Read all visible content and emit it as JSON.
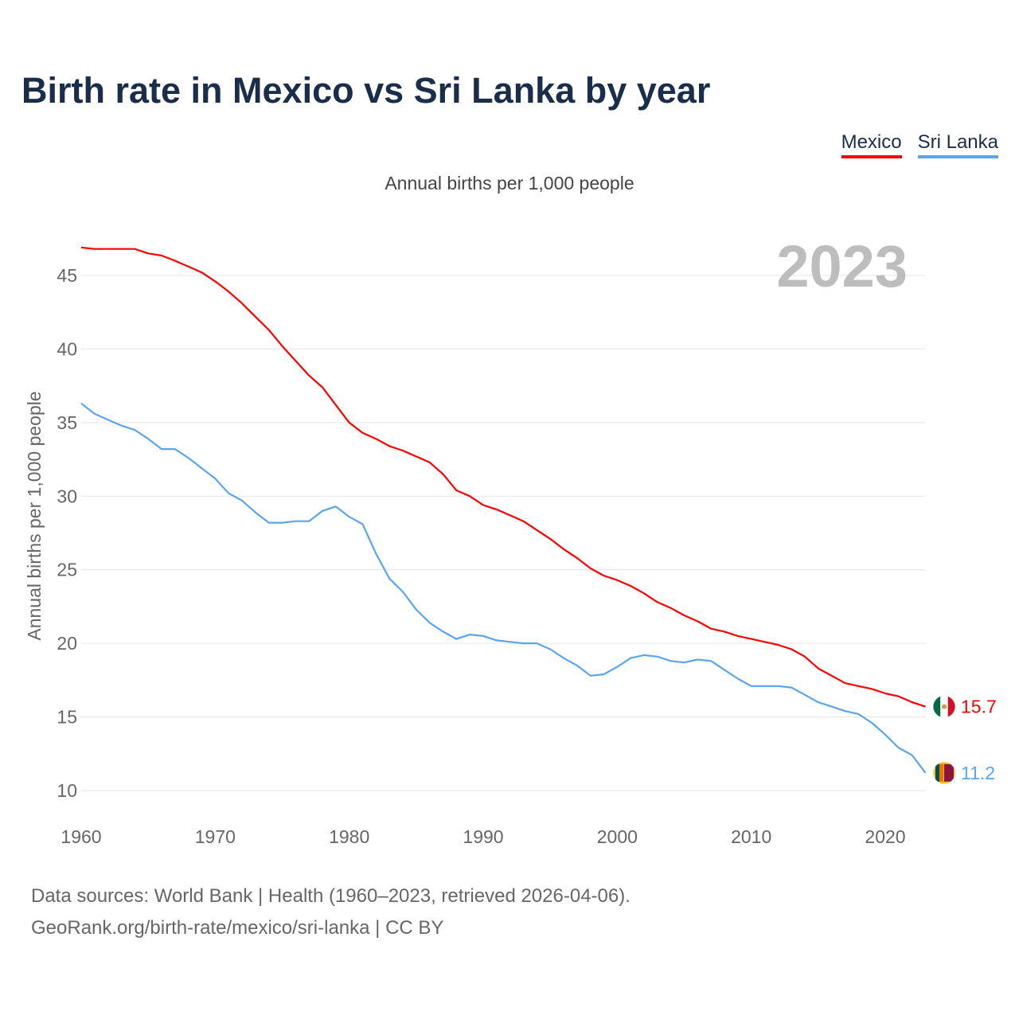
{
  "chart_data": {
    "type": "line",
    "title": "Birth rate in Mexico vs Sri Lanka by year",
    "subtitle": "Annual births per 1,000 people",
    "ylabel": "Annual births per 1,000 people",
    "xlabel": "",
    "year_label": "2023",
    "xlim": [
      1960,
      2023
    ],
    "ylim": [
      10,
      47
    ],
    "x_ticks": [
      "1960",
      "1970",
      "1980",
      "1990",
      "2000",
      "2010",
      "2020"
    ],
    "y_ticks": [
      "10",
      "15",
      "20",
      "25",
      "30",
      "35",
      "40",
      "45"
    ],
    "grid": true,
    "legend_position": "top-right",
    "x": [
      1960,
      1961,
      1962,
      1963,
      1964,
      1965,
      1966,
      1967,
      1968,
      1969,
      1970,
      1971,
      1972,
      1973,
      1974,
      1975,
      1976,
      1977,
      1978,
      1979,
      1980,
      1981,
      1982,
      1983,
      1984,
      1985,
      1986,
      1987,
      1988,
      1989,
      1990,
      1991,
      1992,
      1993,
      1994,
      1995,
      1996,
      1997,
      1998,
      1999,
      2000,
      2001,
      2002,
      2003,
      2004,
      2005,
      2006,
      2007,
      2008,
      2009,
      2010,
      2011,
      2012,
      2013,
      2014,
      2015,
      2016,
      2017,
      2018,
      2019,
      2020,
      2021,
      2022,
      2023
    ],
    "series": [
      {
        "name": "Mexico",
        "color": "#ff0000",
        "end_label": "15.7",
        "values": [
          46.9,
          46.8,
          46.8,
          46.8,
          46.8,
          46.5,
          46.35,
          46.0,
          45.6,
          45.2,
          44.6,
          43.9,
          43.1,
          42.2,
          41.3,
          40.2,
          39.2,
          38.2,
          37.4,
          36.2,
          35.0,
          34.3,
          33.9,
          33.4,
          33.1,
          32.7,
          32.3,
          31.5,
          30.4,
          30.0,
          29.4,
          29.1,
          28.7,
          28.3,
          27.7,
          27.1,
          26.4,
          25.8,
          25.1,
          24.6,
          24.3,
          23.9,
          23.4,
          22.8,
          22.4,
          21.9,
          21.5,
          21.0,
          20.8,
          20.5,
          20.3,
          20.1,
          19.9,
          19.6,
          19.1,
          18.3,
          17.8,
          17.3,
          17.1,
          16.9,
          16.6,
          16.4,
          16.0,
          15.7
        ]
      },
      {
        "name": "Sri Lanka",
        "color": "#5ba4ee",
        "end_label": "11.2",
        "values": [
          36.3,
          35.6,
          35.2,
          34.8,
          34.5,
          33.9,
          33.2,
          33.2,
          32.6,
          31.9,
          31.2,
          30.2,
          29.7,
          28.9,
          28.2,
          28.2,
          28.3,
          28.3,
          29.0,
          29.3,
          28.6,
          28.1,
          26.1,
          24.4,
          23.5,
          22.3,
          21.4,
          20.8,
          20.3,
          20.6,
          20.5,
          20.2,
          20.1,
          20.0,
          20.0,
          19.6,
          19.0,
          18.5,
          17.8,
          17.9,
          18.4,
          19.0,
          19.2,
          19.1,
          18.8,
          18.7,
          18.9,
          18.8,
          18.2,
          17.6,
          17.1,
          17.1,
          17.1,
          17.0,
          16.5,
          16.0,
          15.7,
          15.4,
          15.2,
          14.6,
          13.8,
          12.9,
          12.4,
          11.2
        ]
      }
    ]
  },
  "source": {
    "line1": "Data sources: World Bank | Health (1960–2023, retrieved 2026-04-06).",
    "line2": "GeoRank.org/birth-rate/mexico/sri-lanka | CC BY"
  }
}
